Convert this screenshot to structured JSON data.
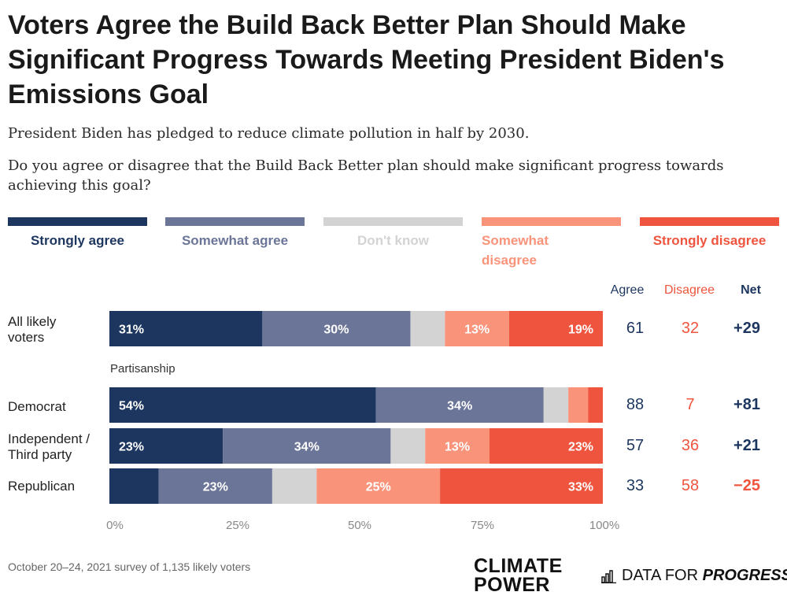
{
  "title": "Voters Agree the Build Back Better Plan Should Make Significant Progress Towards Meeting President Biden's Emissions Goal",
  "subtitle": "President Biden has pledged to reduce climate pollution in half by 2030.",
  "question": "Do you agree or disagree that the Build Back Better plan should make significant progress towards achieving this goal?",
  "legend": [
    {
      "label": "Strongly agree",
      "color": "#1d365f",
      "text_color": "#1d365f"
    },
    {
      "label": "Somewhat agree",
      "color": "#6b7598",
      "text_color": "#6b7598"
    },
    {
      "label": "Don't know",
      "color": "#d3d3d3",
      "text_color": "#d3d3d3"
    },
    {
      "label": "Somewhat disagree",
      "color": "#f9937a",
      "text_color": "#f9937a"
    },
    {
      "label": "Strongly disagree",
      "color": "#ef553e",
      "text_color": "#ef553e"
    }
  ],
  "columns": {
    "agree": "Agree",
    "disagree": "Disagree",
    "net": "Net"
  },
  "section_label": "Partisanship",
  "footnote": "October 20–24, 2021 survey of 1,135 likely voters",
  "logos": {
    "climate_power_line1": "CLIMATE",
    "climate_power_line2": "POWER",
    "dfp_prefix": "DATA FOR ",
    "dfp_suffix": "PROGRESS"
  },
  "colors": {
    "agree_text": "#1d365f",
    "disagree_text": "#ef553e",
    "net_text": "#1d365f",
    "net_negative": "#ef553e"
  },
  "chart_data": {
    "type": "bar",
    "orientation": "horizontal",
    "stacked": true,
    "series": [
      {
        "name": "Strongly agree",
        "values": [
          31,
          54,
          23,
          10
        ]
      },
      {
        "name": "Somewhat agree",
        "values": [
          30,
          34,
          34,
          23
        ]
      },
      {
        "name": "Don't know",
        "values": [
          7,
          5,
          7,
          9
        ]
      },
      {
        "name": "Somewhat disagree",
        "values": [
          13,
          4,
          13,
          25
        ]
      },
      {
        "name": "Strongly disagree",
        "values": [
          19,
          3,
          23,
          33
        ]
      }
    ],
    "categories": [
      "All likely voters",
      "Democrat",
      "Independent / Third party",
      "Republican"
    ],
    "value_labels": [
      [
        "31%",
        "30%",
        "",
        "13%",
        "19%"
      ],
      [
        "54%",
        "34%",
        "",
        "",
        ""
      ],
      [
        "23%",
        "34%",
        "",
        "13%",
        "23%"
      ],
      [
        "",
        "23%",
        "",
        "25%",
        "33%"
      ]
    ],
    "agree": [
      61,
      88,
      57,
      33
    ],
    "disagree": [
      32,
      7,
      36,
      58
    ],
    "net": [
      "+29",
      "+81",
      "+21",
      "−25"
    ],
    "xlim": [
      0,
      100
    ],
    "xticks": [
      "0%",
      "25%",
      "50%",
      "75%",
      "100%"
    ],
    "legend_position": "top"
  }
}
